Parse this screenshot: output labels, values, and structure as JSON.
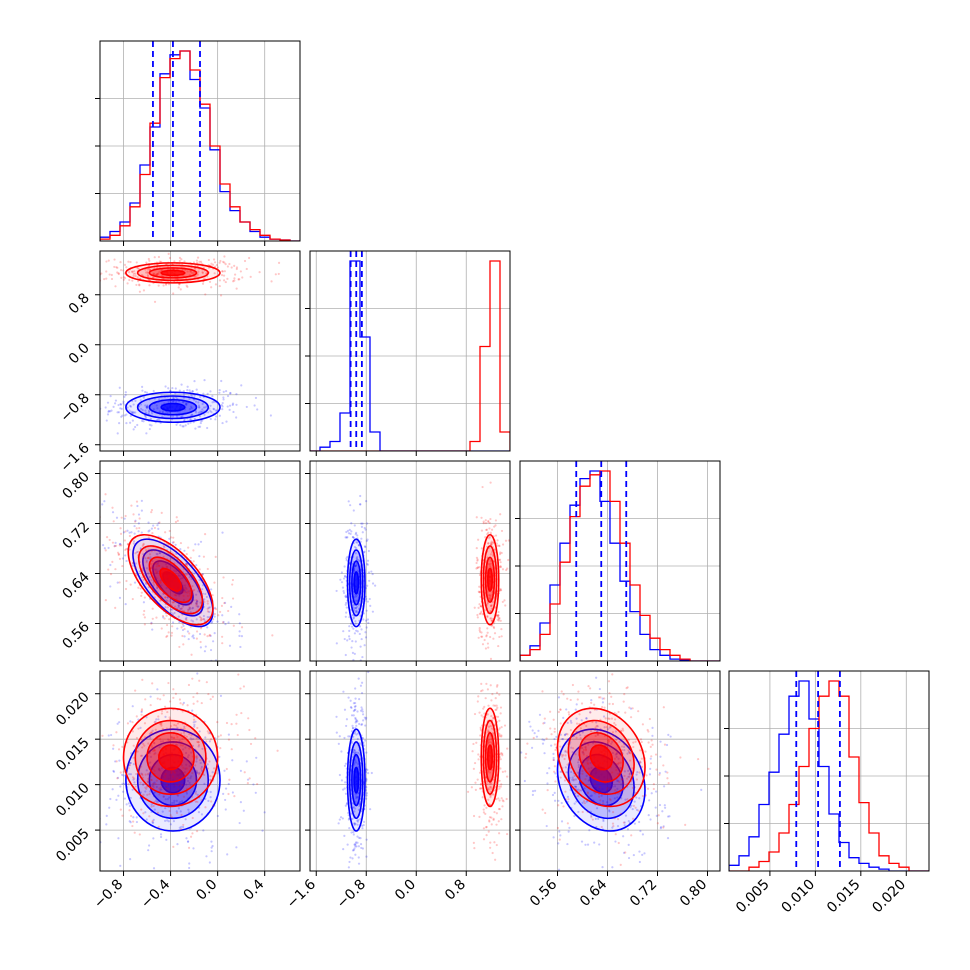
{
  "chart_data": {
    "type": "corner",
    "series_colors": {
      "blue": "#0000ff",
      "red": "#ff0000"
    },
    "params": [
      {
        "index": 0,
        "range": [
          -1.0,
          0.7
        ],
        "ticks": [
          "−0.8",
          "−0.4",
          "0.0",
          "0.4"
        ],
        "tick_values": [
          -0.8,
          -0.4,
          0.0,
          0.4
        ]
      },
      {
        "index": 1,
        "range": [
          -1.7,
          1.5
        ],
        "ticks": [
          "−1.6",
          "−0.8",
          "0.0",
          "0.8"
        ],
        "tick_values": [
          -1.6,
          -0.8,
          0.0,
          0.8
        ]
      },
      {
        "index": 2,
        "range": [
          0.5,
          0.82
        ],
        "ticks": [
          "0.56",
          "0.64",
          "0.72",
          "0.80"
        ],
        "tick_values": [
          0.56,
          0.64,
          0.72,
          0.8
        ]
      },
      {
        "index": 3,
        "range": [
          0.0005,
          0.0225
        ],
        "ticks": [
          "0.005",
          "0.010",
          "0.015",
          "0.020"
        ],
        "tick_values": [
          0.005,
          0.01,
          0.015,
          0.02
        ]
      }
    ],
    "quantiles": [
      [
        -0.55,
        -0.38,
        -0.15
      ],
      [
        -1.05,
        -0.96,
        -0.87
      ],
      [
        0.59,
        0.63,
        0.67
      ],
      [
        0.0079,
        0.0103,
        0.0127
      ]
    ],
    "hist_blue": [
      [
        0.02,
        0.05,
        0.1,
        0.2,
        0.4,
        0.6,
        0.88,
        0.98,
        1.0,
        0.85,
        0.7,
        0.48,
        0.26,
        0.16,
        0.1,
        0.05,
        0.02,
        0.01,
        0.005,
        0.0
      ],
      [
        0.0,
        0.02,
        0.05,
        0.2,
        1.0,
        0.6,
        0.1,
        0.0,
        0.0,
        0.0,
        0.0,
        0.0,
        0.0,
        0.0,
        0.0,
        0.0,
        0.0,
        0.0,
        0.0,
        0.0
      ],
      [
        0.03,
        0.08,
        0.2,
        0.4,
        0.62,
        0.82,
        0.96,
        1.0,
        0.84,
        0.62,
        0.42,
        0.26,
        0.14,
        0.06,
        0.03,
        0.01,
        0.005,
        0.0,
        0.0,
        0.0
      ],
      [
        0.03,
        0.08,
        0.18,
        0.35,
        0.52,
        0.72,
        0.92,
        1.0,
        0.8,
        0.55,
        0.3,
        0.15,
        0.07,
        0.04,
        0.02,
        0.01,
        0.0,
        0.0,
        0.0,
        0.0
      ]
    ],
    "hist_red": [
      [
        0.01,
        0.03,
        0.08,
        0.18,
        0.35,
        0.62,
        0.86,
        0.96,
        1.0,
        0.9,
        0.72,
        0.5,
        0.3,
        0.18,
        0.1,
        0.06,
        0.03,
        0.01,
        0.005,
        0.0
      ],
      [
        0.0,
        0.0,
        0.0,
        0.0,
        0.0,
        0.0,
        0.0,
        0.0,
        0.0,
        0.0,
        0.0,
        0.0,
        0.0,
        0.0,
        0.0,
        0.0,
        0.05,
        0.55,
        1.0,
        0.1
      ],
      [
        0.03,
        0.06,
        0.14,
        0.3,
        0.52,
        0.76,
        0.92,
        0.98,
        1.0,
        0.84,
        0.62,
        0.4,
        0.24,
        0.12,
        0.06,
        0.03,
        0.01,
        0.0,
        0.0,
        0.0
      ],
      [
        0.0,
        0.0,
        0.02,
        0.05,
        0.1,
        0.2,
        0.35,
        0.55,
        0.75,
        0.92,
        1.0,
        0.92,
        0.6,
        0.36,
        0.2,
        0.08,
        0.04,
        0.02,
        0.0,
        0.0
      ]
    ],
    "blobs_blue": [
      {
        "row": 1,
        "col": 0,
        "cx": -0.38,
        "cy": -1.0,
        "sx": 0.2,
        "sy": 0.12,
        "rho": 0.0
      },
      {
        "row": 2,
        "col": 0,
        "cx": -0.38,
        "cy": 0.625,
        "sx": 0.17,
        "sy": 0.035,
        "rho": -0.65
      },
      {
        "row": 2,
        "col": 1,
        "cx": -0.96,
        "cy": 0.625,
        "sx": 0.07,
        "sy": 0.035,
        "rho": 0.0
      },
      {
        "row": 3,
        "col": 0,
        "cx": -0.38,
        "cy": 0.0105,
        "sx": 0.2,
        "sy": 0.0028,
        "rho": 0.0
      },
      {
        "row": 3,
        "col": 1,
        "cx": -0.96,
        "cy": 0.0105,
        "sx": 0.07,
        "sy": 0.0028,
        "rho": 0.0
      },
      {
        "row": 3,
        "col": 2,
        "cx": 0.63,
        "cy": 0.0105,
        "sx": 0.035,
        "sy": 0.0028,
        "rho": -0.2
      }
    ],
    "blobs_red": [
      {
        "row": 1,
        "col": 0,
        "cx": -0.38,
        "cy": 1.15,
        "sx": 0.2,
        "sy": 0.08,
        "rho": 0.0
      },
      {
        "row": 2,
        "col": 0,
        "cx": -0.4,
        "cy": 0.63,
        "sx": 0.18,
        "sy": 0.036,
        "rho": -0.62
      },
      {
        "row": 2,
        "col": 1,
        "cx": 1.18,
        "cy": 0.63,
        "sx": 0.07,
        "sy": 0.036,
        "rho": 0.0
      },
      {
        "row": 3,
        "col": 0,
        "cx": -0.4,
        "cy": 0.013,
        "sx": 0.2,
        "sy": 0.0027,
        "rho": 0.0
      },
      {
        "row": 3,
        "col": 1,
        "cx": 1.18,
        "cy": 0.013,
        "sx": 0.07,
        "sy": 0.0027,
        "rho": 0.0
      },
      {
        "row": 3,
        "col": 2,
        "cx": 0.63,
        "cy": 0.013,
        "sx": 0.035,
        "sy": 0.0027,
        "rho": -0.2
      }
    ],
    "contour_levels_sigma": [
      0.5,
      1.0,
      1.5,
      2.0
    ],
    "grid": true,
    "title": "",
    "xlabel": "",
    "ylabel": ""
  }
}
